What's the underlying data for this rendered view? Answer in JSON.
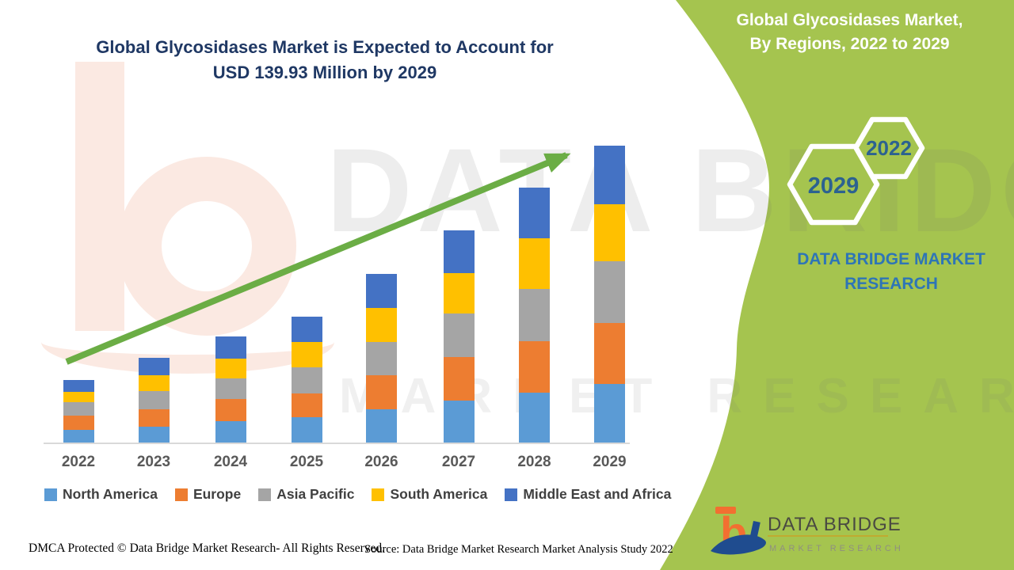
{
  "theme": {
    "accent_green": "#A5C44F",
    "title_navy": "#1F3864",
    "brand_blue": "#2E75B6",
    "arrow_green": "#6BAD45",
    "axis_gray": "#D9D9D9"
  },
  "header": {
    "title_line1": "Global Glycosidases Market is Expected to Account for",
    "title_line2": "USD 139.93 Million by 2029"
  },
  "side_panel": {
    "title_line1": "Global Glycosidases Market,",
    "title_line2": "By Regions, 2022 to 2029",
    "hexagon_small_label": "2022",
    "hexagon_large_label": "2029",
    "brand_line1": "DATA BRIDGE MARKET",
    "brand_line2": "RESEARCH",
    "logo": {
      "b": "b",
      "name": "DATA BRIDGE",
      "subtitle": "MARKET RESEARCH"
    }
  },
  "watermark": {
    "line1": "DATA BRIDGE",
    "line2": "MARKET RESEARCH"
  },
  "footer": {
    "dmca": "DMCA Protected © Data Bridge Market Research- All Rights Reserved.",
    "source": "Source: Data Bridge Market Research Market Analysis Study 2022"
  },
  "chart_data": {
    "type": "bar",
    "stacked": true,
    "title": "Global Glycosidases Market is Expected to Account for USD 139.93 Million by 2029",
    "unit": "USD Million",
    "categories": [
      "2022",
      "2023",
      "2024",
      "2025",
      "2026",
      "2027",
      "2028",
      "2029"
    ],
    "series": [
      {
        "name": "North America",
        "color": "#5B9BD5",
        "values": [
          6.0,
          7.5,
          10.1,
          11.9,
          15.8,
          19.8,
          23.5,
          27.6
        ]
      },
      {
        "name": "Europe",
        "color": "#ED7D31",
        "values": [
          6.7,
          8.2,
          10.4,
          11.3,
          16.0,
          20.5,
          24.3,
          28.7
        ]
      },
      {
        "name": "Asia Pacific",
        "color": "#A5A5A5",
        "values": [
          6.3,
          8.6,
          9.7,
          12.3,
          15.8,
          20.5,
          24.6,
          29.1
        ]
      },
      {
        "name": "South America",
        "color": "#FFC000",
        "values": [
          4.9,
          7.5,
          9.3,
          12.0,
          16.0,
          19.0,
          23.9,
          26.9
        ]
      },
      {
        "name": "Middle East and Africa",
        "color": "#4472C4",
        "values": [
          5.6,
          8.2,
          10.4,
          12.0,
          16.0,
          20.1,
          23.9,
          27.63
        ]
      }
    ],
    "totals": [
      29.5,
      40.0,
      49.9,
      59.5,
      79.6,
      99.9,
      120.2,
      139.93
    ],
    "stack_order_bottom_to_top": [
      "North America",
      "Europe",
      "Asia Pacific",
      "South America",
      "Middle East and Africa"
    ],
    "ylim": [
      0,
      140
    ],
    "gridlines": false,
    "axis_labels_shown": "x-only",
    "legend_position": "bottom",
    "annotations": [
      {
        "type": "trend-arrow",
        "color": "#6BAD45",
        "from_category": "2022",
        "to_category": "2029"
      }
    ]
  }
}
